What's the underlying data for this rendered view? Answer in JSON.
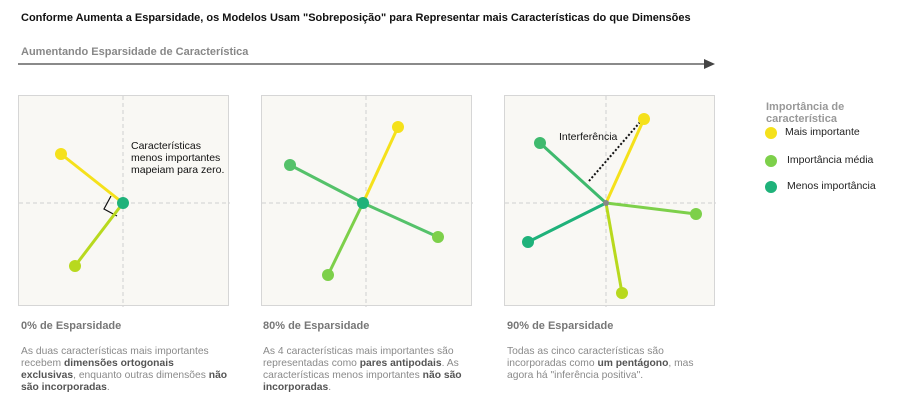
{
  "title": "Conforme Aumenta a Esparsidade, os Modelos Usam \"Sobreposição\" para Representar mais Características do que Dimensões",
  "arrow_label": "Aumentando Esparsidade de Característica",
  "colors": {
    "most": "#f5e11b",
    "medium": "#7dd04a",
    "least": "#1fb27a",
    "yellowgreen": "#b8d91e"
  },
  "panels": [
    {
      "title": "0% de Esparsidade",
      "annotation": "Características\nmenos importantes\nmapeiam para zero.",
      "desc": {
        "p1": "As duas características mais importantes recebem ",
        "b1": "dimensões ortogonais exclusivas",
        "p2": ", enquanto outras dimensões ",
        "b2": "não são incorporadas",
        "p3": "."
      }
    },
    {
      "title": "80% de Esparsidade",
      "desc": {
        "p1": "As 4 características mais importantes são representadas como ",
        "b1": "pares antipodais",
        "p2": ". As características menos importantes ",
        "b2": "não são incorporadas",
        "p3": "."
      }
    },
    {
      "title": "90% de Esparsidade",
      "annotation": "Interferência",
      "desc": {
        "p1": "Todas as cinco características são incorporadas como ",
        "b1": "um pentágono",
        "p2": ", mas agora há \"inferência positiva\".",
        "b2": "",
        "p3": ""
      }
    }
  ],
  "legend": {
    "title": "Importância de característica",
    "items": [
      {
        "label": "Mais importante",
        "color": "#f5e11b"
      },
      {
        "label": "Importância média",
        "color": "#7dd04a"
      },
      {
        "label": "Menos importância",
        "color": "#1fb27a"
      }
    ]
  }
}
